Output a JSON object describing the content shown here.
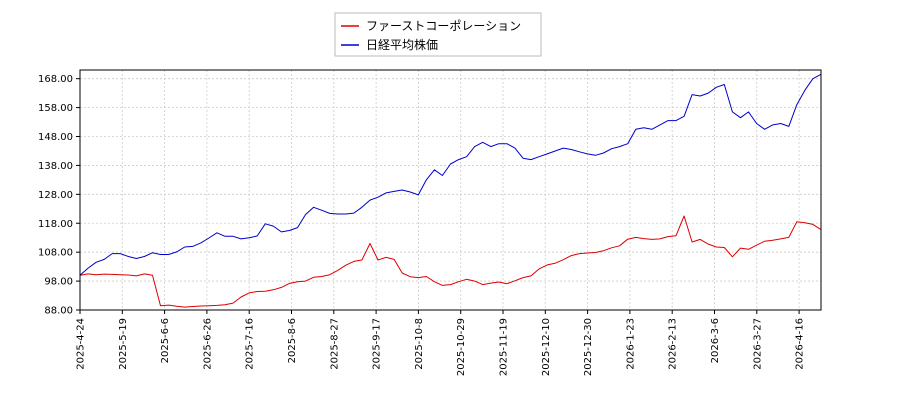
{
  "chart_data": {
    "type": "line",
    "title": "",
    "xlabel": "",
    "ylabel": "",
    "x_ticks": [
      "2025-4-24",
      "2025-5-19",
      "2025-6-6",
      "2025-6-26",
      "2025-7-16",
      "2025-8-6",
      "2025-8-27",
      "2025-9-17",
      "2025-10-8",
      "2025-10-29",
      "2025-11-19",
      "2025-12-10",
      "2025-12-30",
      "2026-1-23",
      "2026-2-13",
      "2026-3-6",
      "2026-3-27",
      "2026-4-16"
    ],
    "y_ticks": [
      "88.00",
      "98.00",
      "108.00",
      "118.00",
      "128.00",
      "138.00",
      "148.00",
      "158.00",
      "168.00"
    ],
    "ylim": [
      88,
      171
    ],
    "grid": true,
    "legend": "top-center",
    "series": [
      {
        "name": "ファーストコーポレーション",
        "color": "#dd0000",
        "values": [
          100,
          100.5,
          100.2,
          100.4,
          100.3,
          100.2,
          100.1,
          99.8,
          100.5,
          100,
          89.5,
          89.7,
          89.3,
          89,
          89.2,
          89.4,
          89.5,
          89.6,
          89.8,
          90.4,
          92.5,
          93.9,
          94.4,
          94.5,
          95,
          95.8,
          97.2,
          97.8,
          98,
          99.3,
          99.6,
          100.2,
          101.7,
          103.5,
          104.8,
          105.3,
          111,
          105.3,
          106.2,
          105.5,
          100.8,
          99.5,
          99.2,
          99.6,
          97.8,
          96.5,
          96.8,
          97.8,
          98.6,
          98,
          96.8,
          97.3,
          97.7,
          97.1,
          98.1,
          99.2,
          99.8,
          102.2,
          103.6,
          104.2,
          105.4,
          106.8,
          107.5,
          107.7,
          107.9,
          108.5,
          109.5,
          110.2,
          112.5,
          113.1,
          112.7,
          112.4,
          112.6,
          113.4,
          113.7,
          120.5,
          111.5,
          112.4,
          110.8,
          109.8,
          109.6,
          106.4,
          109.4,
          109,
          110.4,
          111.8,
          112.1,
          112.6,
          113.1,
          118.5,
          118.2,
          117.6,
          115.8
        ]
      },
      {
        "name": "日経平均株価",
        "color": "#0000cc",
        "values": [
          100,
          102.5,
          104.5,
          105.5,
          107.5,
          107.5,
          106.5,
          105.8,
          106.5,
          107.8,
          107.2,
          107.2,
          108.1,
          109.8,
          110,
          111.2,
          112.9,
          114.7,
          113.5,
          113.5,
          112.6,
          113,
          113.6,
          117.8,
          117,
          115,
          115.5,
          116.5,
          121,
          123.5,
          122.5,
          121.4,
          121.2,
          121.2,
          121.5,
          123.5,
          126,
          127,
          128.5,
          129,
          129.5,
          128.8,
          127.8,
          133,
          136.5,
          134.5,
          138.5,
          140,
          141,
          144.5,
          146,
          144.5,
          145.5,
          145.5,
          144,
          140.5,
          140,
          141,
          142,
          143,
          144,
          143.5,
          142.7,
          142,
          141.5,
          142.3,
          143.8,
          144.5,
          145.5,
          150.5,
          151,
          150.5,
          152,
          153.5,
          153.5,
          155,
          162.5,
          162,
          163,
          165,
          166,
          156.5,
          154.5,
          156.5,
          152.5,
          150.5,
          152,
          152.5,
          151.5,
          159,
          164,
          168,
          169.5
        ]
      }
    ]
  }
}
